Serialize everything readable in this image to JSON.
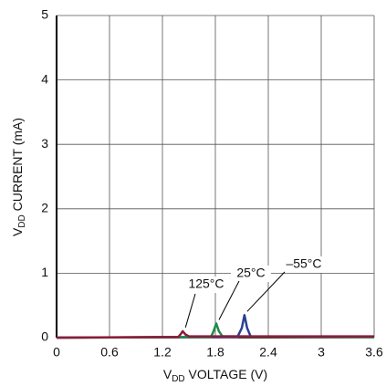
{
  "chart_data": {
    "type": "line",
    "xlabel": {
      "main": "V",
      "sub": "DD",
      "rest": " VOLTAGE (V)"
    },
    "ylabel": {
      "main": "V",
      "sub": "DD",
      "rest": " CURRENT (mA)"
    },
    "xlim": [
      0,
      3.6
    ],
    "xticks": [
      0,
      0.6,
      1.2,
      1.8,
      2.4,
      3,
      3.6
    ],
    "ylim": [
      0,
      5
    ],
    "yticks": [
      0,
      1,
      2,
      3,
      4,
      5
    ],
    "grid": true,
    "series": [
      {
        "name": "–55°C",
        "color": "#2b3f95",
        "x": [
          0,
          2.05,
          2.1,
          2.13,
          2.16,
          2.2,
          3.6
        ],
        "values": [
          0,
          0.01,
          0.15,
          0.35,
          0.15,
          0.02,
          0.01
        ]
      },
      {
        "name": "25°C",
        "color": "#1f8a4c",
        "x": [
          0,
          1.75,
          1.78,
          1.81,
          1.84,
          1.88,
          3.6
        ],
        "values": [
          0,
          0.01,
          0.1,
          0.22,
          0.1,
          0.02,
          0.01
        ]
      },
      {
        "name": "125°C",
        "color": "#8e1b3a",
        "x": [
          0,
          1.38,
          1.41,
          1.43,
          1.46,
          1.5,
          3.6
        ],
        "values": [
          0,
          0.01,
          0.06,
          0.1,
          0.05,
          0.02,
          0.02
        ]
      }
    ]
  }
}
